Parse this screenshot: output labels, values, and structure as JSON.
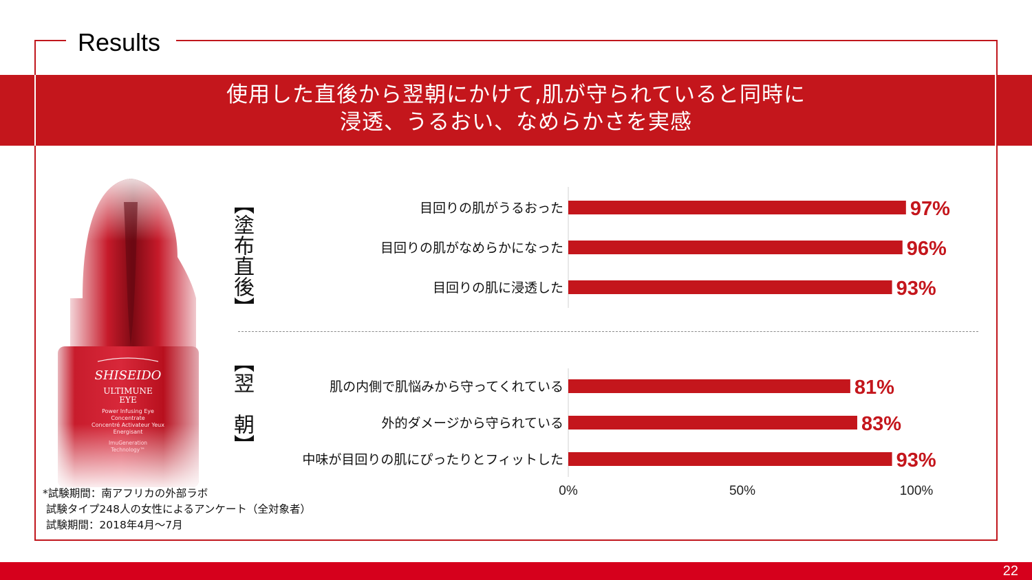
{
  "title": "Results",
  "banner": {
    "line1": "使用した直後から翌朝にかけて,肌が守られていると同時に",
    "line2": "浸透、うるおい、なめらかさを実感"
  },
  "product": {
    "brand": "SHISEIDO",
    "name_line1": "ULTIMUNE",
    "name_line2": "EYE",
    "desc1": "Power Infusing Eye",
    "desc2": "Concentrate",
    "desc3": "Concentré Activateur Yeux",
    "desc4": "Energisant",
    "desc5": "ImuGeneration",
    "desc6": "Technology™"
  },
  "groups": {
    "immediate": "【塗布直後】",
    "next_morning": "【翌　朝】"
  },
  "chart_data": {
    "type": "bar",
    "orientation": "horizontal",
    "xlim": [
      0,
      100
    ],
    "xticks": [
      "0%",
      "50%",
      "100%"
    ],
    "bar_color": "#c4161c",
    "label_color": "#c4161c",
    "groups": [
      {
        "name": "【塗布直後】",
        "categories": [
          "目回りの肌がうるおった",
          "目回りの肌がなめらかになった",
          "目回りの肌に浸透した"
        ],
        "values": [
          97,
          96,
          93
        ],
        "labels": [
          "97%",
          "96%",
          "93%"
        ]
      },
      {
        "name": "【翌　朝】",
        "categories": [
          "肌の内側で肌悩みから守ってくれている",
          "外的ダメージから守られている",
          "中味が目回りの肌にぴったりとフィットした"
        ],
        "values": [
          81,
          83,
          93
        ],
        "labels": [
          "81%",
          "83%",
          "93%"
        ]
      }
    ]
  },
  "footnote": [
    "*試験期間：南アフリカの外部ラボ",
    " 試験タイプ248人の女性によるアンケート（全対象者）",
    " 試験期間：2018年4月～7月"
  ],
  "page_number": "22"
}
